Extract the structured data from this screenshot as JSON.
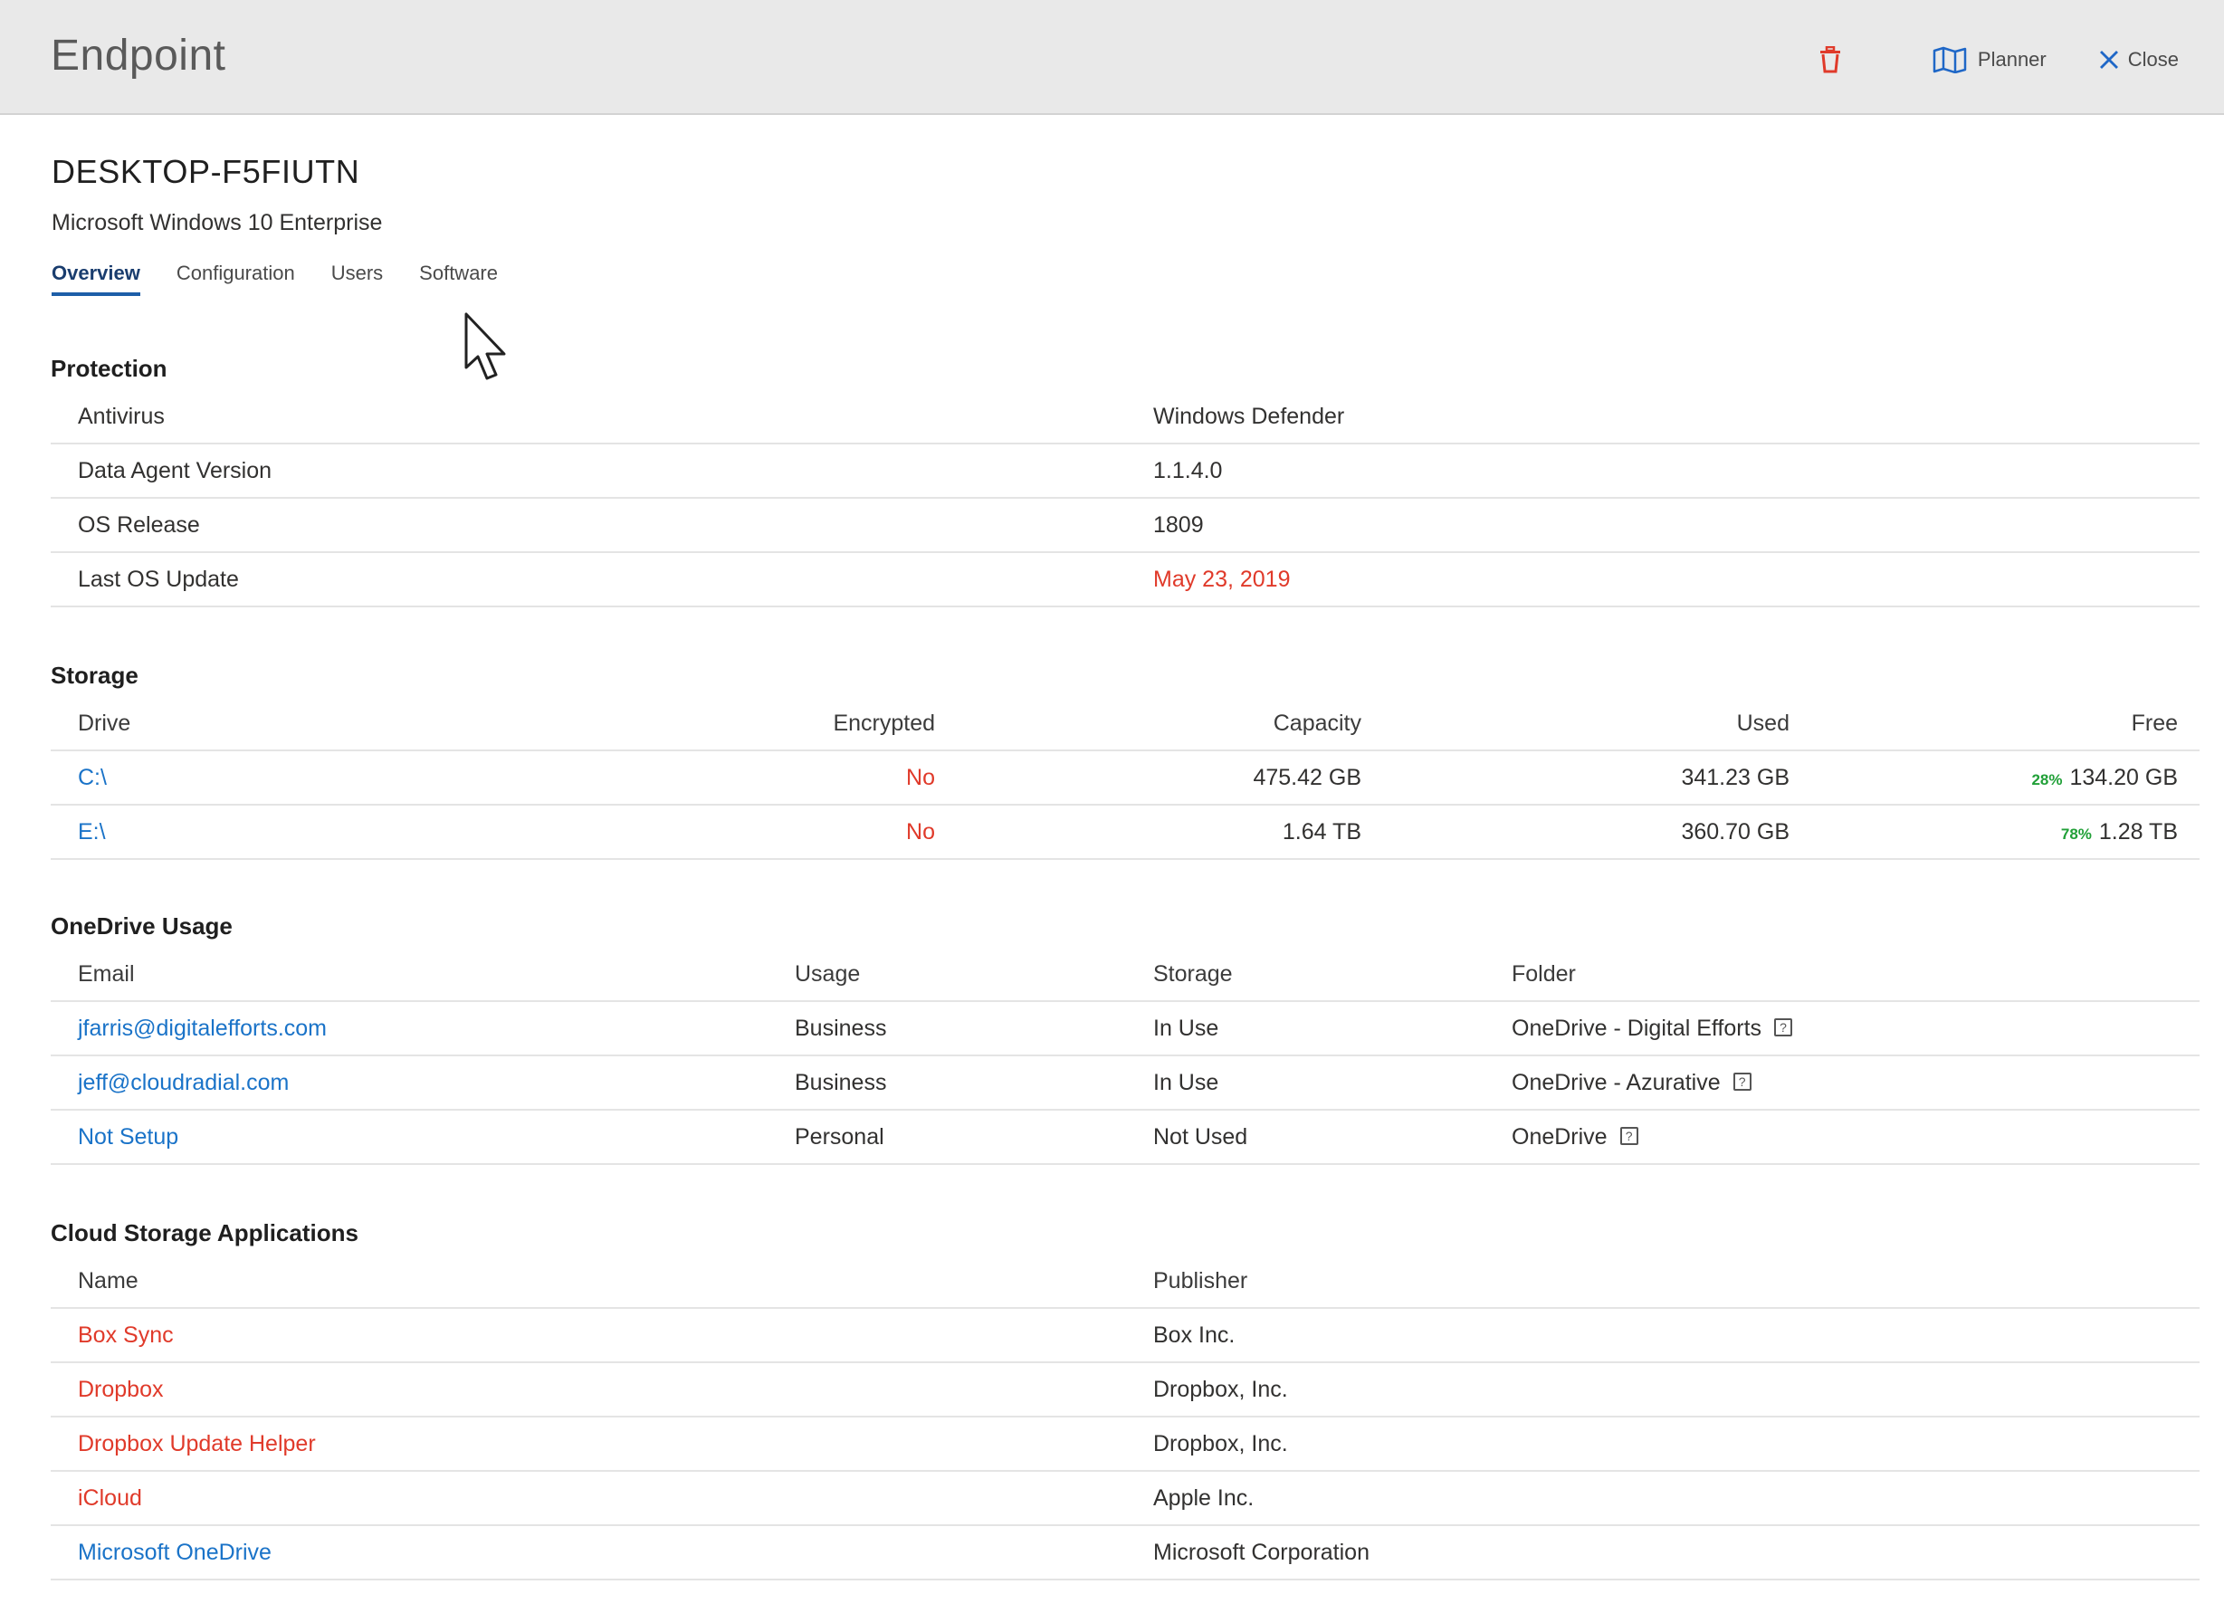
{
  "header": {
    "title": "Endpoint",
    "delete_icon": "trash-icon",
    "planner_label": "Planner",
    "close_label": "Close",
    "delete_color": "#e03a2a"
  },
  "device": {
    "name": "DESKTOP-F5FIUTN",
    "os": "Microsoft Windows 10 Enterprise"
  },
  "tabs": [
    {
      "label": "Overview",
      "active": true
    },
    {
      "label": "Configuration",
      "active": false
    },
    {
      "label": "Users",
      "active": false
    },
    {
      "label": "Software",
      "active": false
    }
  ],
  "protection": {
    "title": "Protection",
    "rows": [
      {
        "label": "Antivirus",
        "value": "Windows Defender"
      },
      {
        "label": "Data Agent Version",
        "value": "1.1.4.0"
      },
      {
        "label": "OS Release",
        "value": "1809"
      },
      {
        "label": "Last OS Update",
        "value": "May 23, 2019",
        "status": "warning"
      }
    ]
  },
  "storage": {
    "title": "Storage",
    "headers": {
      "drive": "Drive",
      "encrypted": "Encrypted",
      "capacity": "Capacity",
      "used": "Used",
      "free": "Free"
    },
    "rows": [
      {
        "drive": "C:\\",
        "encrypted": "No",
        "capacity": "475.42 GB",
        "used": "341.23 GB",
        "free_pct": "28%",
        "free": "134.20 GB"
      },
      {
        "drive": "E:\\",
        "encrypted": "No",
        "capacity": "1.64 TB",
        "used": "360.70 GB",
        "free_pct": "78%",
        "free": "1.28 TB"
      }
    ]
  },
  "onedrive": {
    "title": "OneDrive Usage",
    "headers": {
      "email": "Email",
      "usage": "Usage",
      "storage": "Storage",
      "folder": "Folder"
    },
    "rows": [
      {
        "email": "jfarris@digitalefforts.com",
        "usage": "Business",
        "storage": "In Use",
        "folder": "OneDrive - Digital Efforts"
      },
      {
        "email": "jeff@cloudradial.com",
        "usage": "Business",
        "storage": "In Use",
        "folder": "OneDrive - Azurative"
      },
      {
        "email": "Not Setup",
        "usage": "Personal",
        "storage": "Not Used",
        "folder": "OneDrive"
      }
    ]
  },
  "cloud_apps": {
    "title": "Cloud Storage Applications",
    "headers": {
      "name": "Name",
      "publisher": "Publisher"
    },
    "rows": [
      {
        "name": "Box Sync",
        "publisher": "Box Inc.",
        "flagged": true
      },
      {
        "name": "Dropbox",
        "publisher": "Dropbox, Inc.",
        "flagged": true
      },
      {
        "name": "Dropbox Update Helper",
        "publisher": "Dropbox, Inc.",
        "flagged": true
      },
      {
        "name": "iCloud",
        "publisher": "Apple Inc.",
        "flagged": true
      },
      {
        "name": "Microsoft OneDrive",
        "publisher": "Microsoft Corporation",
        "flagged": false
      }
    ]
  },
  "colors": {
    "link": "#1a73c8",
    "warning": "#e03a2a",
    "free_pct": "#21a038",
    "tab_active": "#1d5ea8"
  }
}
